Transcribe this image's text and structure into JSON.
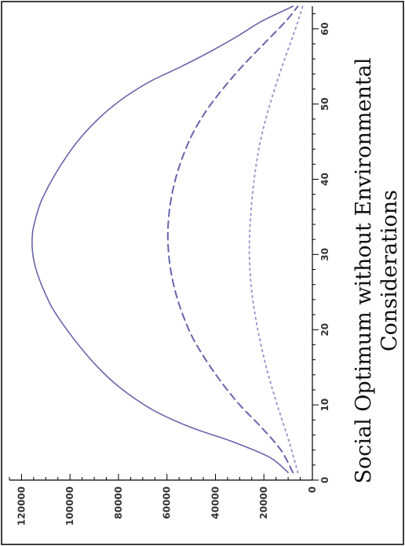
{
  "caption": {
    "line1": "Social Optimum without Environmental",
    "line2": "Considerations"
  },
  "chart_data": {
    "type": "line",
    "orientation": "rotated 90 degrees counter-clockwise",
    "x_axis": {
      "ticks": [
        "0",
        "10",
        "20",
        "30",
        "40",
        "50",
        "60"
      ],
      "range": [
        0,
        63
      ]
    },
    "y_axis": {
      "ticks": [
        "0",
        "20000",
        "40000",
        "60000",
        "80000",
        "100000",
        "120000"
      ],
      "range": [
        0,
        125000
      ]
    },
    "grid": false,
    "legend": "none",
    "series": [
      {
        "style": "solid",
        "color": "#6666aa",
        "x": [
          1,
          3,
          5,
          7,
          9,
          11,
          13,
          15,
          17,
          19,
          21,
          23,
          25,
          27,
          29,
          31,
          33,
          35,
          37,
          39,
          41,
          43,
          45,
          47,
          49,
          51,
          53,
          55,
          57,
          59,
          61,
          63
        ],
        "y": [
          10000,
          17500,
          32000,
          50000,
          64000,
          74000,
          82000,
          88500,
          94000,
          99000,
          103500,
          107500,
          110500,
          113000,
          114800,
          115600,
          115400,
          114000,
          112000,
          109000,
          105500,
          101500,
          97000,
          91500,
          85000,
          77000,
          67000,
          54000,
          42000,
          31000,
          21000,
          8000
        ]
      },
      {
        "style": "dashed",
        "color": "#6666aa",
        "x": [
          1,
          4,
          7,
          10,
          13,
          16,
          19,
          22,
          25,
          28,
          31,
          34,
          37,
          40,
          43,
          46,
          49,
          52,
          55,
          58,
          61,
          63
        ],
        "y": [
          8000,
          13000,
          21000,
          30000,
          37500,
          44000,
          49500,
          53500,
          56500,
          58500,
          59500,
          59500,
          58500,
          56500,
          53500,
          49500,
          44000,
          37000,
          29000,
          20000,
          11000,
          6000
        ]
      },
      {
        "style": "dotted",
        "color": "#9999cc",
        "x": [
          1,
          5,
          10,
          15,
          20,
          25,
          30,
          35,
          40,
          45,
          50,
          55,
          60,
          63
        ],
        "y": [
          6000,
          9500,
          14500,
          19000,
          22500,
          25000,
          26000,
          25500,
          24000,
          21500,
          17500,
          12500,
          7000,
          4000
        ]
      }
    ]
  }
}
